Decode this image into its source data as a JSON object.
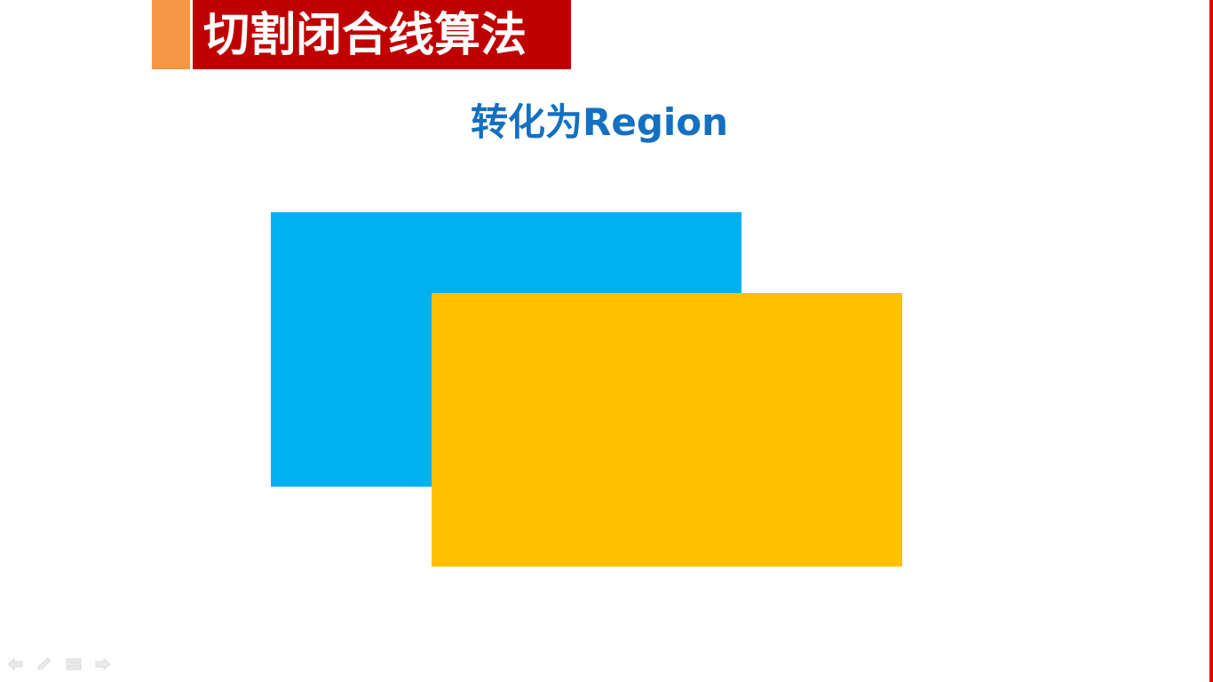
{
  "slide": {
    "title": "切割闭合线算法",
    "subtitle": "转化为Region"
  },
  "shapes": {
    "region_a": {
      "color": "#00b0f0"
    },
    "region_b": {
      "color": "#ffc000"
    }
  },
  "colors": {
    "title_background": "#c00000",
    "title_accent": "#f79646",
    "subtitle_text": "#1470c0",
    "right_edge": "#e00000"
  },
  "slideshow_toolbar": {
    "icons": [
      "previous-arrow-icon",
      "pen-icon",
      "menu-icon",
      "next-arrow-icon"
    ]
  }
}
